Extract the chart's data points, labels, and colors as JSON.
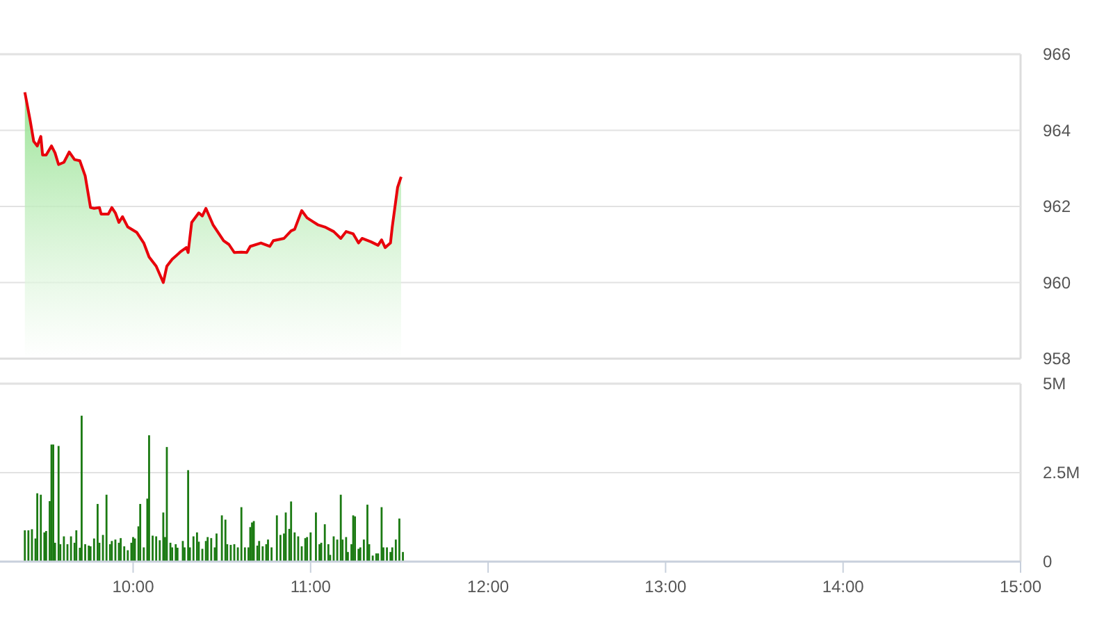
{
  "chart_data": [
    {
      "type": "area",
      "tick_labels": "y",
      "grid": "y",
      "xlim": [
        9.25,
        15
      ],
      "ylim": [
        958,
        966
      ],
      "yticks": [
        958,
        960,
        962,
        964,
        966
      ],
      "series": [
        {
          "color": "#e8000b",
          "x": [
            9.39,
            9.42,
            9.44,
            9.46,
            9.48,
            9.49,
            9.51,
            9.54,
            9.56,
            9.58,
            9.61,
            9.64,
            9.67,
            9.7,
            9.73,
            9.76,
            9.78,
            9.81,
            9.82,
            9.86,
            9.88,
            9.9,
            9.92,
            9.94,
            9.97,
            10.02,
            10.06,
            10.09,
            10.13,
            10.17,
            10.19,
            10.22,
            10.27,
            10.3,
            10.31,
            10.33,
            10.37,
            10.39,
            10.41,
            10.45,
            10.51,
            10.54,
            10.57,
            10.61,
            10.64,
            10.66,
            10.72,
            10.77,
            10.79,
            10.85,
            10.89,
            10.91,
            10.95,
            10.98,
            11.01,
            11.04,
            11.08,
            11.13,
            11.17,
            11.2,
            11.24,
            11.27,
            11.29,
            11.34,
            11.38,
            11.4,
            11.42,
            11.45,
            11.46,
            11.49,
            11.51
          ],
          "values": [
            965.0,
            964.26,
            963.71,
            963.59,
            963.84,
            963.35,
            963.35,
            963.59,
            963.41,
            963.1,
            963.16,
            963.43,
            963.23,
            963.2,
            962.8,
            961.97,
            961.95,
            961.97,
            961.8,
            961.8,
            961.97,
            961.83,
            961.58,
            961.73,
            961.46,
            961.32,
            961.04,
            960.67,
            960.43,
            960.0,
            960.43,
            960.61,
            960.82,
            960.92,
            960.79,
            961.58,
            961.83,
            961.75,
            961.95,
            961.52,
            961.1,
            961.0,
            960.79,
            960.8,
            960.79,
            960.95,
            961.04,
            960.95,
            961.1,
            961.16,
            961.36,
            961.4,
            961.89,
            961.7,
            961.61,
            961.52,
            961.46,
            961.34,
            961.16,
            961.34,
            961.28,
            961.04,
            961.16,
            961.07,
            960.98,
            961.12,
            960.92,
            961.04,
            961.46,
            962.5,
            962.78
          ]
        }
      ]
    },
    {
      "type": "bar",
      "grid": "y",
      "xlim": [
        9.25,
        15
      ],
      "ylim": [
        0,
        5
      ],
      "yticks": [
        0,
        {
          "value": 2.5,
          "label": "2.5M"
        },
        {
          "value": 5,
          "label": "5M"
        }
      ],
      "xticks": [
        {
          "value": 10,
          "label": "10:00"
        },
        {
          "value": 11,
          "label": "11:00"
        },
        {
          "value": 12,
          "label": "12:00"
        },
        {
          "value": 13,
          "label": "13:00"
        },
        {
          "value": 14,
          "label": "14:00"
        },
        {
          "value": 15,
          "label": "15:00"
        }
      ],
      "series": [
        {
          "color": "#1b7a12",
          "x": [
            9.39,
            9.41,
            9.43,
            9.45,
            9.46,
            9.48,
            9.5,
            9.51,
            9.53,
            9.54,
            9.55,
            9.56,
            9.58,
            9.59,
            9.61,
            9.63,
            9.65,
            9.67,
            9.68,
            9.7,
            9.71,
            9.73,
            9.75,
            9.76,
            9.78,
            9.8,
            9.81,
            9.83,
            9.85,
            9.87,
            9.88,
            9.9,
            9.92,
            9.93,
            9.95,
            9.97,
            9.99,
            10.0,
            10.01,
            10.03,
            10.04,
            10.06,
            10.08,
            10.09,
            10.11,
            10.13,
            10.15,
            10.17,
            10.18,
            10.19,
            10.21,
            10.22,
            10.24,
            10.25,
            10.28,
            10.29,
            10.31,
            10.32,
            10.34,
            10.36,
            10.37,
            10.39,
            10.41,
            10.42,
            10.44,
            10.46,
            10.47,
            10.5,
            10.52,
            10.53,
            10.55,
            10.57,
            10.59,
            10.61,
            10.63,
            10.65,
            10.66,
            10.67,
            10.68,
            10.7,
            10.71,
            10.73,
            10.75,
            10.76,
            10.78,
            10.81,
            10.83,
            10.85,
            10.86,
            10.88,
            10.89,
            10.91,
            10.93,
            10.95,
            10.97,
            10.98,
            11.0,
            11.03,
            11.05,
            11.06,
            11.08,
            11.1,
            11.11,
            11.13,
            11.15,
            11.17,
            11.18,
            11.2,
            11.21,
            11.23,
            11.24,
            11.25,
            11.27,
            11.28,
            11.3,
            11.32,
            11.33,
            11.35,
            11.37,
            11.38,
            11.4,
            11.41,
            11.43,
            11.45,
            11.46,
            11.48,
            11.5,
            11.52
          ],
          "values": [
            0.88,
            0.88,
            0.91,
            0.65,
            1.92,
            1.88,
            0.82,
            0.86,
            1.7,
            3.29,
            3.29,
            0.53,
            3.25,
            0.49,
            0.71,
            0.49,
            0.71,
            0.53,
            0.88,
            0.39,
            4.1,
            0.49,
            0.45,
            0.43,
            0.65,
            1.62,
            0.53,
            0.75,
            1.88,
            0.49,
            0.58,
            0.62,
            0.53,
            0.66,
            0.43,
            0.32,
            0.53,
            0.69,
            0.65,
            0.99,
            1.62,
            0.4,
            1.77,
            3.55,
            0.73,
            0.71,
            0.6,
            1.38,
            0.69,
            3.22,
            0.53,
            0.4,
            0.49,
            0.39,
            0.58,
            0.4,
            2.57,
            0.4,
            0.71,
            0.82,
            0.56,
            0.36,
            0.58,
            0.69,
            0.66,
            0.4,
            0.79,
            1.3,
            1.18,
            0.49,
            0.47,
            0.49,
            0.4,
            1.53,
            0.4,
            0.4,
            0.97,
            1.1,
            1.14,
            0.45,
            0.58,
            0.43,
            0.49,
            0.62,
            0.4,
            1.3,
            0.75,
            0.79,
            1.38,
            0.92,
            1.69,
            0.82,
            0.71,
            0.43,
            0.66,
            0.69,
            0.82,
            1.38,
            0.49,
            0.53,
            1.05,
            0.49,
            0.19,
            0.71,
            0.62,
            1.88,
            0.62,
            0.69,
            0.27,
            0.49,
            1.3,
            1.27,
            0.36,
            0.4,
            0.62,
            1.6,
            0.49,
            0.17,
            0.23,
            0.23,
            1.53,
            0.4,
            0.4,
            0.27,
            0.4,
            0.62,
            1.21,
            0.27
          ]
        }
      ]
    }
  ]
}
